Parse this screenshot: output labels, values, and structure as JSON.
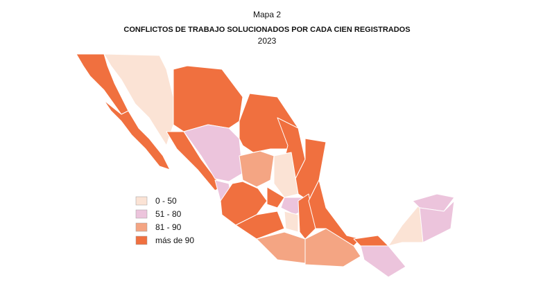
{
  "header": {
    "label": "Mapa 2",
    "title": "CONFLICTOS DE TRABAJO SOLUCIONADOS POR CADA CIEN REGISTRADOS",
    "year": "2023"
  },
  "legend": {
    "items": [
      {
        "label": "0 - 50",
        "color": "#fbe3d5"
      },
      {
        "label": "51 - 80",
        "color": "#ecc4dc"
      },
      {
        "label": "81 - 90",
        "color": "#f4a583"
      },
      {
        "label": "más de 90",
        "color": "#f0703f"
      }
    ]
  }
}
